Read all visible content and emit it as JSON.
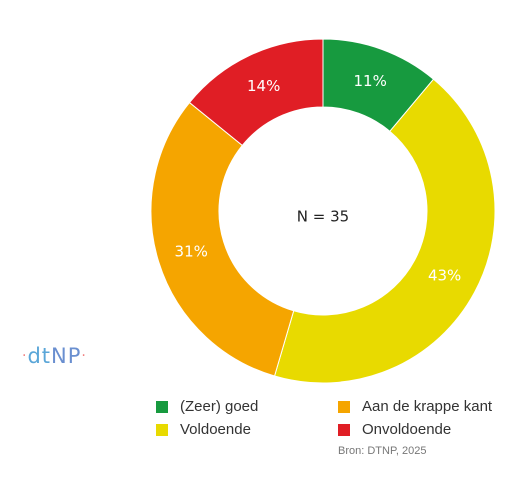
{
  "chart_data": {
    "type": "pie",
    "subtype": "donut",
    "center_label": "N = 35",
    "slices": [
      {
        "name": "(Zeer) goed",
        "value": 11,
        "label": "11%",
        "color": "#179a3f"
      },
      {
        "name": "Voldoende",
        "value": 43,
        "label": "43%",
        "color": "#e8da00"
      },
      {
        "name": "Aan de krappe kant",
        "value": 31,
        "label": "31%",
        "color": "#f5a500"
      },
      {
        "name": "Onvoldoende",
        "value": 14,
        "label": "14%",
        "color": "#e01e25"
      }
    ],
    "legend": [
      {
        "label": "(Zeer) goed",
        "color": "#179a3f"
      },
      {
        "label": "Aan de krappe kant",
        "color": "#f5a500"
      },
      {
        "label": "Voldoende",
        "color": "#e8da00"
      },
      {
        "label": "Onvoldoende",
        "color": "#e01e25"
      }
    ],
    "legend_placement": "bottom",
    "source": "Bron: DTNP, 2025"
  },
  "logo": {
    "dot1": "·",
    "text": "dt",
    "np": "NP",
    "dot2": "·"
  }
}
